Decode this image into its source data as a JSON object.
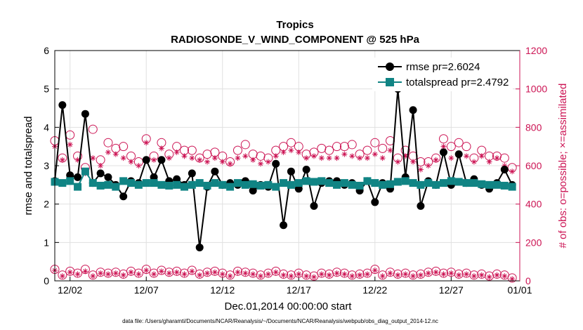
{
  "chart_data": {
    "type": "line",
    "title": "Tropics",
    "subtitle": "RADIOSONDE_V_WIND_COMPONENT @ 525 hPa",
    "xlabel": "Dec.01,2014 00:00:00 start",
    "ylabel": "rmse and totalspread",
    "y2label": "# of obs: o=possible; ×=assimilated",
    "xlim": [
      0,
      61
    ],
    "ylim": [
      0,
      6
    ],
    "y2lim": [
      0,
      1200
    ],
    "x_ticks": [
      {
        "x": 2,
        "label": "12/02"
      },
      {
        "x": 12,
        "label": "12/07"
      },
      {
        "x": 22,
        "label": "12/12"
      },
      {
        "x": 32,
        "label": "12/17"
      },
      {
        "x": 42,
        "label": "12/22"
      },
      {
        "x": 52,
        "label": "12/27"
      },
      {
        "x": 62,
        "label": "01/01"
      }
    ],
    "y_ticks": [
      0,
      1,
      2,
      3,
      4,
      5,
      6
    ],
    "y2_ticks": [
      0,
      200,
      400,
      600,
      800,
      1000,
      1200
    ],
    "x": [
      0,
      1,
      2,
      3,
      4,
      5,
      6,
      7,
      8,
      9,
      10,
      11,
      12,
      13,
      14,
      15,
      16,
      17,
      18,
      19,
      20,
      21,
      22,
      23,
      24,
      25,
      26,
      27,
      28,
      29,
      30,
      31,
      32,
      33,
      34,
      35,
      36,
      37,
      38,
      39,
      40,
      41,
      42,
      43,
      44,
      45,
      46,
      47,
      48,
      49,
      50,
      51,
      52,
      53,
      54,
      55,
      56,
      57,
      58,
      59,
      60
    ],
    "series": [
      {
        "name": "rmse",
        "legend": "rmse pr=2.6024",
        "color": "#000000",
        "marker": "circle",
        "values": [
          2.6,
          4.58,
          2.75,
          2.7,
          4.35,
          2.55,
          2.8,
          2.7,
          2.5,
          2.2,
          2.6,
          2.55,
          3.15,
          2.7,
          3.15,
          2.6,
          2.65,
          2.5,
          2.8,
          0.87,
          2.45,
          2.85,
          2.5,
          2.55,
          2.5,
          2.6,
          2.35,
          2.5,
          2.45,
          3.05,
          1.45,
          2.85,
          2.4,
          2.9,
          1.95,
          2.55,
          2.6,
          2.6,
          2.5,
          2.55,
          2.35,
          2.6,
          2.05,
          2.55,
          2.4,
          5.0,
          2.7,
          4.45,
          1.95,
          2.6,
          2.5,
          3.35,
          2.5,
          3.3,
          2.55,
          2.65,
          2.5,
          2.4,
          2.55,
          2.9,
          2.5
        ]
      },
      {
        "name": "totalspread",
        "legend": "totalspread pr=2.4792",
        "color": "#108484",
        "marker": "square",
        "values": [
          2.58,
          2.55,
          2.6,
          2.45,
          2.85,
          2.55,
          2.48,
          2.5,
          2.45,
          2.6,
          2.55,
          2.5,
          2.55,
          2.55,
          2.5,
          2.48,
          2.5,
          2.45,
          2.5,
          2.55,
          2.48,
          2.55,
          2.5,
          2.45,
          2.55,
          2.5,
          2.52,
          2.48,
          2.5,
          2.45,
          2.55,
          2.5,
          2.55,
          2.6,
          2.58,
          2.6,
          2.55,
          2.5,
          2.55,
          2.5,
          2.48,
          2.6,
          2.55,
          2.5,
          2.52,
          2.58,
          2.6,
          2.55,
          2.5,
          2.55,
          2.5,
          2.55,
          2.6,
          2.58,
          2.55,
          2.55,
          2.52,
          2.5,
          2.5,
          2.48,
          2.45
        ]
      },
      {
        "name": "possible obs",
        "color": "#cc1454",
        "marker": "circle-star",
        "axis": "right",
        "values": [
          730,
          640,
          760,
          650,
          590,
          790,
          630,
          720,
          690,
          700,
          650,
          620,
          740,
          650,
          720,
          660,
          700,
          680,
          680,
          640,
          660,
          670,
          650,
          620,
          680,
          710,
          660,
          650,
          640,
          680,
          700,
          720,
          700,
          660,
          670,
          690,
          680,
          700,
          700,
          710,
          660,
          680,
          720,
          690,
          730,
          640,
          680,
          650,
          620,
          620,
          640,
          740,
          700,
          720,
          700,
          640,
          680,
          650,
          650,
          640,
          590
        ]
      },
      {
        "name": "assimilated obs",
        "color": "#cc1454",
        "marker": "star",
        "axis": "right",
        "values": [
          700,
          630,
          710,
          630,
          560,
          640,
          600,
          670,
          660,
          640,
          620,
          600,
          720,
          630,
          690,
          640,
          670,
          650,
          640,
          630,
          620,
          640,
          620,
          610,
          640,
          650,
          630,
          610,
          620,
          650,
          670,
          680,
          670,
          640,
          650,
          640,
          640,
          640,
          660,
          650,
          640,
          640,
          660,
          640,
          680,
          620,
          650,
          620,
          580,
          600,
          630,
          700,
          640,
          660,
          650,
          620,
          650,
          620,
          640,
          600,
          570
        ]
      },
      {
        "name": "possible obs (lower)",
        "color": "#cc1454",
        "marker": "circle-star",
        "axis": "right",
        "values": [
          60,
          30,
          50,
          40,
          60,
          30,
          45,
          40,
          45,
          35,
          50,
          40,
          60,
          40,
          55,
          45,
          50,
          40,
          55,
          35,
          45,
          50,
          40,
          30,
          50,
          45,
          40,
          30,
          40,
          50,
          35,
          30,
          40,
          30,
          25,
          40,
          35,
          45,
          40,
          30,
          35,
          40,
          60,
          30,
          45,
          35,
          40,
          30,
          35,
          45,
          50,
          40,
          45,
          35,
          40,
          30,
          35,
          25,
          35,
          30,
          15
        ]
      },
      {
        "name": "assimilated obs (lower)",
        "color": "#cc1454",
        "marker": "star",
        "axis": "right",
        "values": [
          55,
          25,
          45,
          35,
          50,
          25,
          40,
          35,
          40,
          30,
          45,
          35,
          55,
          35,
          50,
          40,
          45,
          35,
          50,
          30,
          40,
          45,
          35,
          25,
          45,
          40,
          35,
          25,
          35,
          45,
          30,
          25,
          35,
          25,
          20,
          35,
          30,
          40,
          35,
          25,
          30,
          35,
          55,
          25,
          40,
          30,
          35,
          25,
          30,
          40,
          45,
          35,
          40,
          30,
          35,
          25,
          30,
          20,
          30,
          25,
          10
        ]
      }
    ]
  },
  "footer": "data file: /Users/gharamti/Documents/NCAR/Reanalysis/~/Documents/NCAR/Reanalysis/webpub/obs_diag_output_2014-12.nc"
}
